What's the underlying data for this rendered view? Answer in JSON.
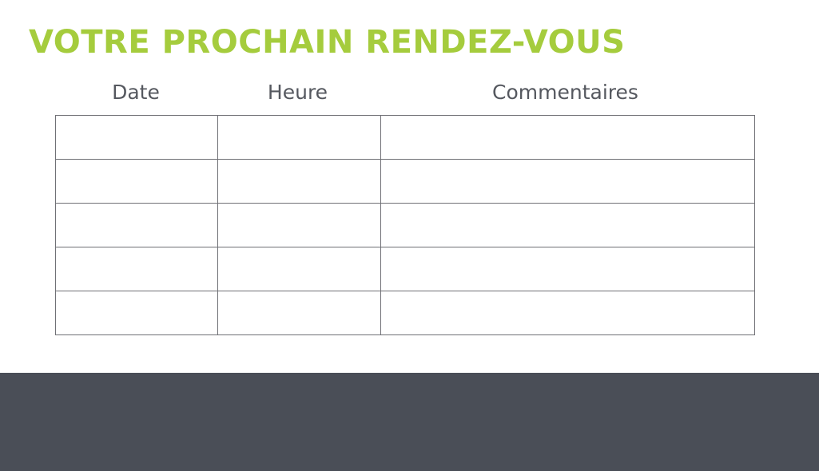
{
  "title": "VOTRE PROCHAIN RENDEZ-VOUS",
  "table": {
    "columns": [
      "Date",
      "Heure",
      "Commentaires"
    ],
    "rows": [
      [
        "",
        "",
        ""
      ],
      [
        "",
        "",
        ""
      ],
      [
        "",
        "",
        ""
      ],
      [
        "",
        "",
        ""
      ],
      [
        "",
        "",
        ""
      ]
    ]
  },
  "colors": {
    "title": "#a5cc3d",
    "header_text": "#55585f",
    "grid": "#6f7075",
    "footer": "#4a4e57"
  }
}
